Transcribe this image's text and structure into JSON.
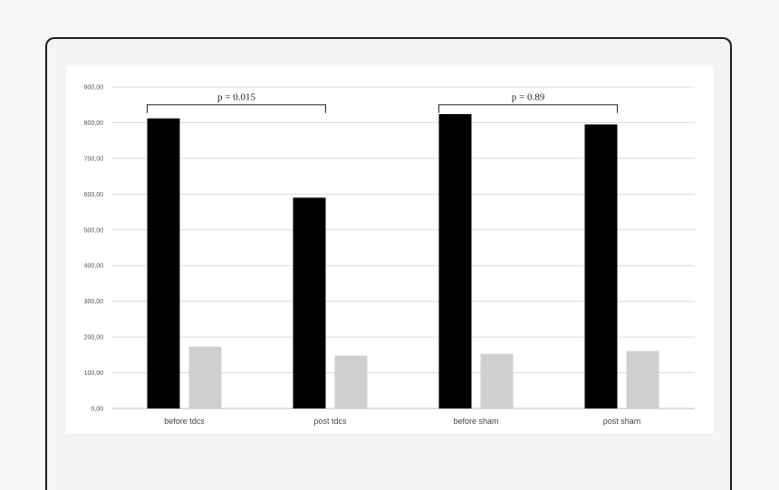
{
  "chart_data": {
    "type": "bar",
    "categories": [
      "before tdcs",
      "post tdcs",
      "before sham",
      "post sham"
    ],
    "series": [
      {
        "values": [
          812,
          590,
          824,
          795
        ],
        "color": "#000000"
      },
      {
        "values": [
          173,
          148,
          153,
          161
        ],
        "color": "#d0cece"
      }
    ],
    "ylim": [
      0,
      900
    ],
    "yticks": [
      "0,00",
      "100,00",
      "200,00",
      "300,00",
      "400,00",
      "500,00",
      "600,00",
      "700,00",
      "800,00",
      "900,00"
    ],
    "grid": true,
    "annotations": [
      {
        "text": "p = 0.015",
        "from_category": 0,
        "to_category": 1,
        "y": 850
      },
      {
        "text": "p = 0.89",
        "from_category": 2,
        "to_category": 3,
        "y": 850
      }
    ]
  }
}
